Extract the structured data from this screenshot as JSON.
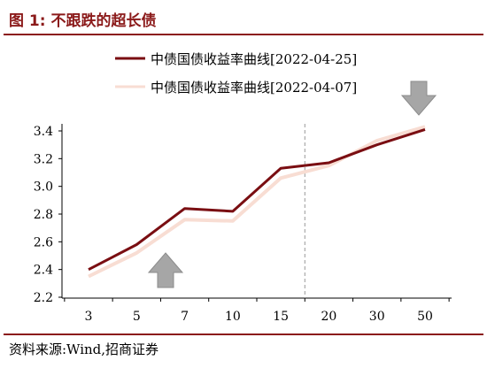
{
  "figure": {
    "title": "图 1:  不跟跌的超长债",
    "source": "资料来源:Wind,招商证券"
  },
  "colors": {
    "accent": "#8b1a1a",
    "series_dark": "#7a0e12",
    "series_light": "#f8ddd3",
    "arrow_fill": "#a6a6a6",
    "divider": "#999999"
  },
  "icons": {
    "down_arrow": "down-arrow-icon",
    "up_arrow": "up-arrow-icon"
  },
  "chart_data": {
    "type": "line",
    "title": "",
    "xlabel": "",
    "ylabel": "",
    "categories": [
      "3",
      "5",
      "7",
      "10",
      "15",
      "20",
      "30",
      "50"
    ],
    "ylim": [
      2.2,
      3.4
    ],
    "yticks": [
      "2.2",
      "2.4",
      "2.6",
      "2.8",
      "3.0",
      "3.2",
      "3.4"
    ],
    "grid": false,
    "legend_position": "top",
    "series": [
      {
        "name": "中债国债收益率曲线[2022-04-25]",
        "color": "#7a0e12",
        "values": [
          2.4,
          2.58,
          2.84,
          2.82,
          3.13,
          3.17,
          3.3,
          3.41
        ]
      },
      {
        "name": "中债国债收益率曲线[2022-04-07]",
        "color": "#f8ddd3",
        "values": [
          2.35,
          2.52,
          2.76,
          2.75,
          3.06,
          3.15,
          3.33,
          3.43
        ]
      }
    ]
  }
}
